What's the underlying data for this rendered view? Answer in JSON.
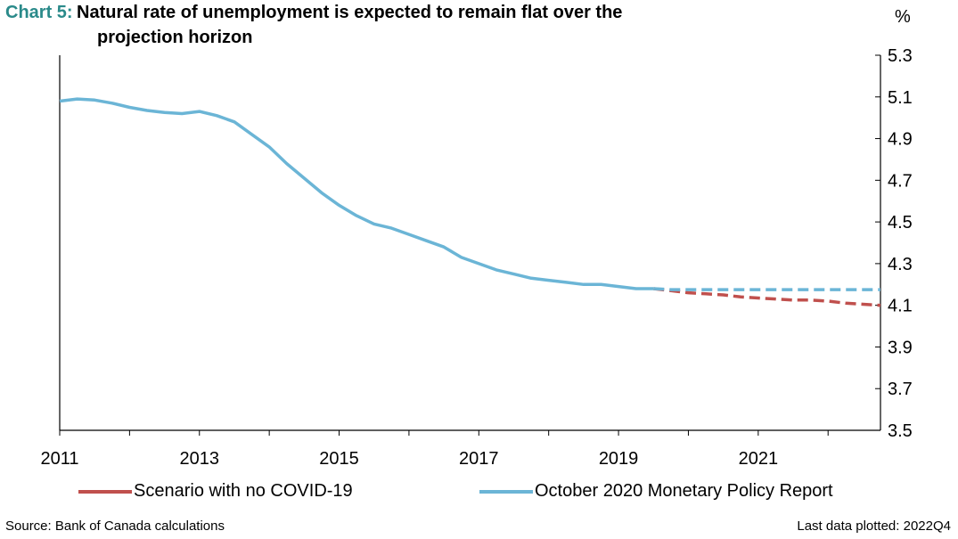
{
  "title": {
    "label": "Chart 5:",
    "line1": "Natural rate of unemployment is expected to remain flat over the",
    "line2": "projection horizon"
  },
  "unit": "%",
  "source": "Source: Bank of Canada calculations",
  "last_data": "Last data plotted: 2022Q4",
  "colors": {
    "red": "#c0504d",
    "blue": "#6bb5d6"
  },
  "chart_data": {
    "type": "line",
    "title": "Natural rate of unemployment is expected to remain flat over the projection horizon",
    "ylabel": "%",
    "xlim": [
      2011.0,
      2022.75
    ],
    "ylim": [
      3.5,
      5.3
    ],
    "x_ticks": [
      "2011",
      "2013",
      "2015",
      "2017",
      "2019",
      "2021"
    ],
    "y_ticks": [
      "5.3",
      "5.1",
      "4.9",
      "4.7",
      "4.5",
      "4.3",
      "4.1",
      "3.9",
      "3.7",
      "3.5"
    ],
    "legend": {
      "position": "bottom"
    },
    "series": [
      {
        "name": "October 2020 Monetary Policy Report",
        "color": "#6bb5d6",
        "x": [
          2011.0,
          2011.25,
          2011.5,
          2011.75,
          2012.0,
          2012.25,
          2012.5,
          2012.75,
          2013.0,
          2013.25,
          2013.5,
          2013.75,
          2014.0,
          2014.25,
          2014.5,
          2014.75,
          2015.0,
          2015.25,
          2015.5,
          2015.75,
          2016.0,
          2016.25,
          2016.5,
          2016.75,
          2017.0,
          2017.25,
          2017.5,
          2017.75,
          2018.0,
          2018.25,
          2018.5,
          2018.75,
          2019.0,
          2019.25,
          2019.5
        ],
        "y": [
          5.08,
          5.09,
          5.085,
          5.07,
          5.05,
          5.035,
          5.025,
          5.02,
          5.03,
          5.01,
          4.98,
          4.92,
          4.86,
          4.78,
          4.71,
          4.64,
          4.58,
          4.53,
          4.49,
          4.47,
          4.44,
          4.41,
          4.38,
          4.33,
          4.3,
          4.27,
          4.25,
          4.23,
          4.22,
          4.21,
          4.2,
          4.2,
          4.19,
          4.18,
          4.18
        ]
      },
      {
        "name": "October 2020 Monetary Policy Report",
        "color": "#6bb5d6",
        "style": "dashed",
        "x": [
          2019.5,
          2019.75,
          2020.0,
          2020.5,
          2021.0,
          2021.5,
          2022.0,
          2022.75
        ],
        "y": [
          4.18,
          4.175,
          4.175,
          4.175,
          4.175,
          4.175,
          4.175,
          4.175
        ]
      },
      {
        "name": "Scenario with no COVID-19",
        "color": "#c0504d",
        "style": "dashed",
        "x": [
          2019.5,
          2019.75,
          2020.0,
          2020.25,
          2020.5,
          2020.75,
          2021.0,
          2021.25,
          2021.5,
          2021.75,
          2022.0,
          2022.25,
          2022.5,
          2022.75
        ],
        "y": [
          4.18,
          4.17,
          4.16,
          4.155,
          4.15,
          4.14,
          4.135,
          4.13,
          4.125,
          4.125,
          4.12,
          4.11,
          4.105,
          4.1
        ]
      }
    ]
  }
}
